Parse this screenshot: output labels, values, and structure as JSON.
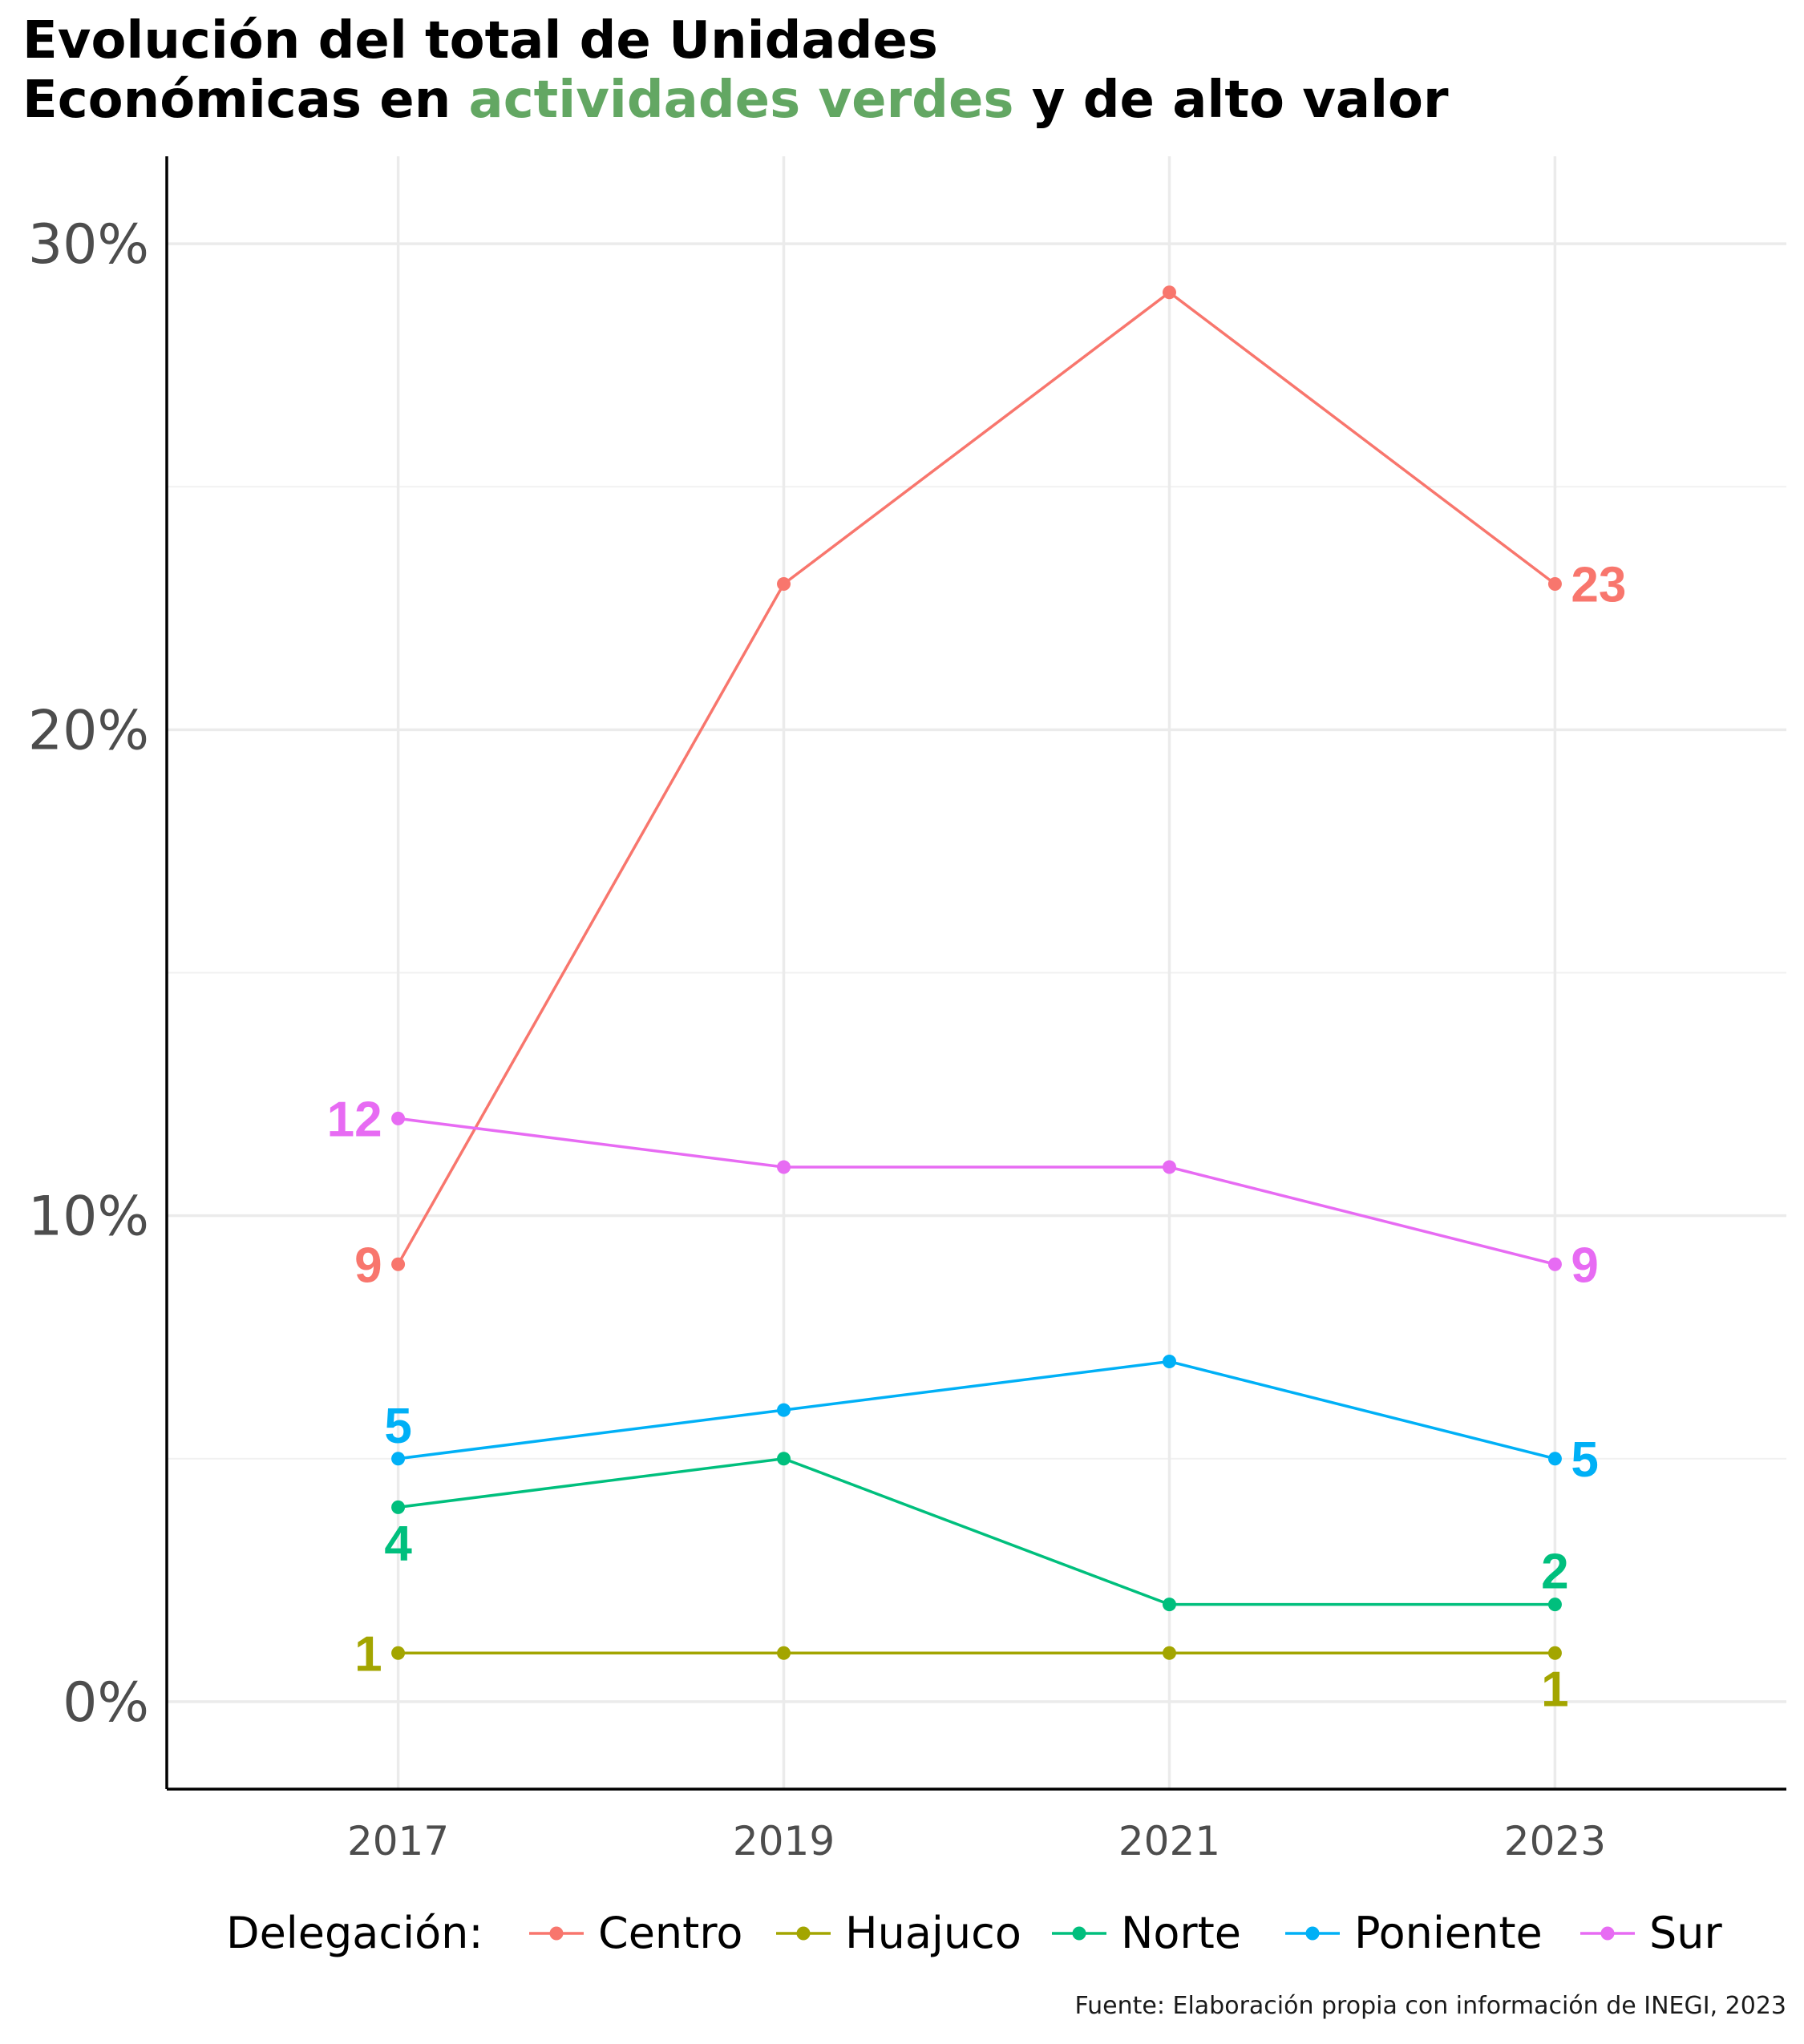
{
  "title": {
    "line1": "Evolución del total de Unidades",
    "line2_before": "Económicas en ",
    "line2_highlight": "actividades verdes",
    "line2_after": " y de alto valor",
    "highlight_color": "#63a763"
  },
  "caption": "Fuente: Elaboración propia con información de INEGI, 2023",
  "legend_title": "Delegación:",
  "chart_data": {
    "type": "line",
    "x": [
      2017,
      2019,
      2021,
      2023
    ],
    "x_tick_labels": [
      "2017",
      "2019",
      "2021",
      "2023"
    ],
    "y_tick_labels": [
      "0%",
      "10%",
      "20%",
      "30%"
    ],
    "ylim": [
      -1.8,
      31.8
    ],
    "xlim": [
      2015.8,
      2024.2
    ],
    "grid": true,
    "legend_position": "bottom",
    "series": [
      {
        "name": "Centro",
        "color": "#F8766D",
        "values": [
          9,
          23,
          29,
          23
        ],
        "labels": [
          {
            "index": 0,
            "text": "9",
            "anchor": "left"
          },
          {
            "index": 3,
            "text": "23",
            "anchor": "right"
          }
        ]
      },
      {
        "name": "Huajuco",
        "color": "#A3A500",
        "values": [
          1,
          1,
          1,
          1
        ],
        "labels": [
          {
            "index": 0,
            "text": "1",
            "anchor": "left"
          },
          {
            "index": 3,
            "text": "1",
            "anchor": "below"
          }
        ]
      },
      {
        "name": "Norte",
        "color": "#00BF7D",
        "values": [
          4,
          5,
          2,
          2
        ],
        "labels": [
          {
            "index": 0,
            "text": "4",
            "anchor": "below"
          },
          {
            "index": 3,
            "text": "2",
            "anchor": "above"
          }
        ]
      },
      {
        "name": "Poniente",
        "color": "#00B0F6",
        "values": [
          5,
          6,
          7,
          5
        ],
        "labels": [
          {
            "index": 0,
            "text": "5",
            "anchor": "above"
          },
          {
            "index": 3,
            "text": "5",
            "anchor": "right"
          }
        ]
      },
      {
        "name": "Sur",
        "color": "#E76BF3",
        "values": [
          12,
          11,
          11,
          9
        ],
        "labels": [
          {
            "index": 0,
            "text": "12",
            "anchor": "left"
          },
          {
            "index": 3,
            "text": "9",
            "anchor": "right"
          }
        ]
      }
    ]
  }
}
